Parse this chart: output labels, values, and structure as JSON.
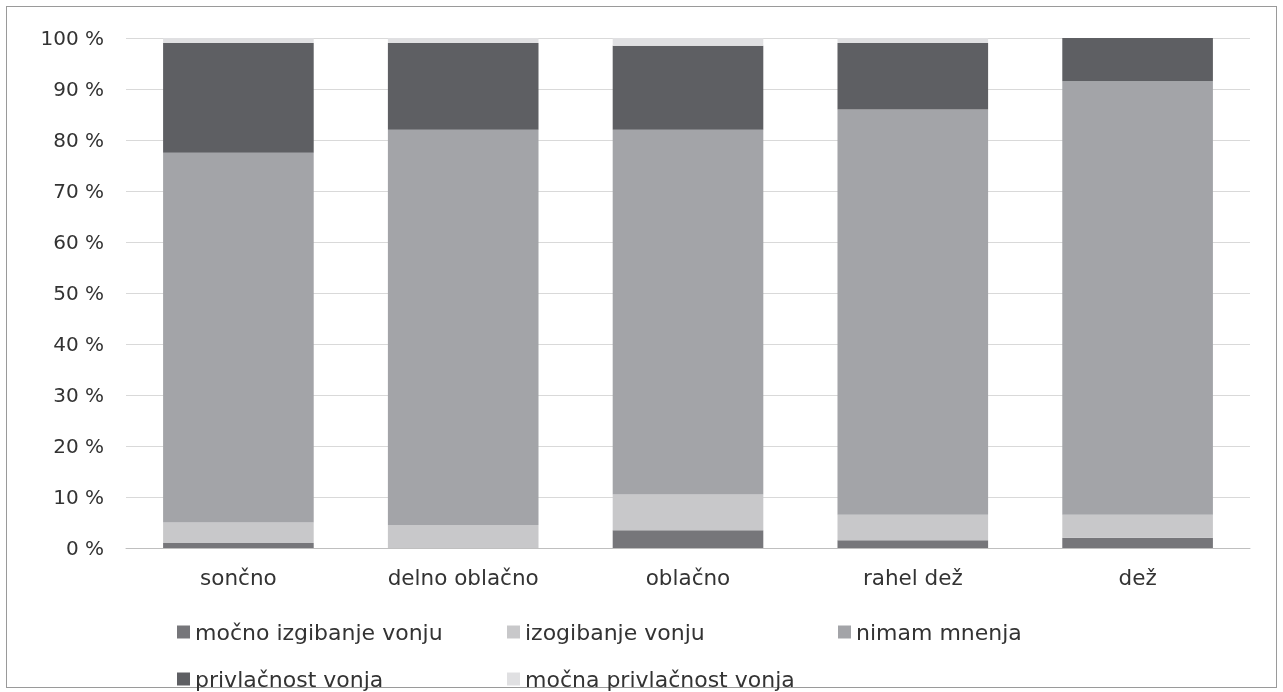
{
  "chart_data": {
    "type": "bar",
    "stacked": true,
    "categories": [
      "sončno",
      "delno oblačno",
      "oblačno",
      "rahel dež",
      "dež"
    ],
    "series": [
      {
        "name": "močno izgibanje vonju",
        "color": "#76767a",
        "values": [
          1,
          0,
          3.5,
          1.5,
          2
        ]
      },
      {
        "name": "izogibanje vonju",
        "color": "#c8c8ca",
        "values": [
          4,
          4.5,
          7,
          5,
          4.5
        ]
      },
      {
        "name": "nimam mnenja",
        "color": "#a3a4a8",
        "values": [
          72.5,
          77.5,
          71.5,
          79.5,
          85
        ]
      },
      {
        "name": "privlačnost vonja",
        "color": "#5e5f63",
        "values": [
          21.5,
          17,
          16.5,
          13,
          8.5
        ]
      },
      {
        "name": "močna privlačnost vonja",
        "color": "#e0e0e2",
        "values": [
          1,
          1,
          1.5,
          1,
          0
        ]
      }
    ],
    "ylim": [
      0,
      100
    ],
    "yticks": [
      {
        "value": 0,
        "label": "0 %"
      },
      {
        "value": 10,
        "label": "10 %"
      },
      {
        "value": 20,
        "label": "20 %"
      },
      {
        "value": 30,
        "label": "30 %"
      },
      {
        "value": 40,
        "label": "40 %"
      },
      {
        "value": 50,
        "label": "50 %"
      },
      {
        "value": 60,
        "label": "60 %"
      },
      {
        "value": 70,
        "label": "70 %"
      },
      {
        "value": 80,
        "label": "80 %"
      },
      {
        "value": 90,
        "label": "90 %"
      },
      {
        "value": 100,
        "label": "100 %"
      }
    ],
    "grid": "y",
    "legend": "bottom"
  }
}
